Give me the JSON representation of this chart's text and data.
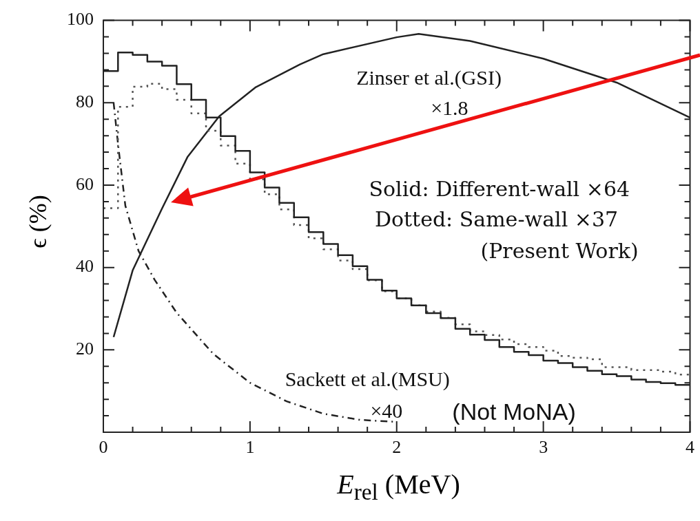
{
  "chart_data": {
    "type": "histogram",
    "xlabel": "E$_{rel}$ (MeV)",
    "ylabel": "ϵ (%)",
    "bins": [
      0,
      0.1,
      0.2,
      0.3,
      0.4,
      0.5,
      0.6,
      0.7,
      0.8,
      0.9,
      1,
      1.1,
      1.2,
      1.3,
      1.4,
      1.5,
      1.6,
      1.7,
      1.8,
      1.9,
      2,
      2.1,
      2.2,
      2.3,
      2.4,
      2.5,
      2.6,
      2.7,
      2.8,
      2.9,
      3,
      3.1,
      3.2,
      3.3,
      3.4,
      3.5,
      3.6,
      3.7,
      3.8,
      3.9,
      4
    ],
    "series": [
      {
        "color": "#222222",
        "line_style": "solid",
        "values": [
          87.7,
          92.2,
          91.6,
          90.0,
          89.0,
          84.5,
          80.7,
          76.4,
          71.9,
          68.3,
          63.1,
          59.4,
          55.7,
          52.2,
          48.6,
          45.7,
          43.0,
          40.3,
          37.0,
          34.4,
          32.5,
          30.8,
          28.9,
          27.7,
          25.1,
          23.7,
          22.4,
          20.7,
          19.5,
          18.7,
          17.4,
          16.8,
          15.8,
          14.9,
          14.1,
          13.6,
          12.8,
          12.2,
          11.9,
          11.5
        ]
      },
      {
        "color": "#555555",
        "line_style": "dotted",
        "values": [
          54.4,
          79.0,
          83.9,
          84.6,
          83.3,
          80.7,
          77.4,
          73.2,
          69.6,
          65.2,
          61.4,
          57.8,
          54.1,
          50.3,
          47.1,
          44.4,
          41.7,
          39.6,
          36.9,
          34.2,
          32.5,
          30.8,
          29.3,
          27.8,
          26.2,
          24.5,
          23.6,
          22.5,
          21.4,
          20.7,
          19.8,
          18.5,
          18.1,
          17.7,
          15.8,
          15.8,
          15.1,
          15.1,
          14.7,
          14.0
        ]
      },
      {
        "type": "line",
        "color": "#222222",
        "line_style": "solid",
        "x": [
          0.07,
          0.2,
          0.4,
          0.575,
          0.79,
          1.04,
          1.34,
          1.5,
          2.0,
          2.15,
          2.5,
          3.0,
          3.5,
          4.0
        ],
        "values": [
          23.1,
          39.3,
          54.3,
          66.9,
          76.7,
          83.8,
          89.3,
          91.8,
          95.9,
          96.7,
          95.0,
          90.7,
          84.9,
          76.4
        ]
      },
      {
        "type": "line",
        "color": "#222222",
        "line_style": "dashed",
        "x": [
          0.07,
          0.1,
          0.15,
          0.24,
          0.35,
          0.5,
          0.75,
          1.0,
          1.25,
          1.5,
          1.75,
          2.0
        ],
        "values": [
          80,
          70,
          55,
          44,
          37,
          29,
          19,
          12,
          7.5,
          4.5,
          3,
          2.5
        ]
      }
    ],
    "xlim": [
      0,
      4
    ],
    "ylim": [
      0,
      100
    ],
    "xticks": [
      0,
      {
        "value": 0.2,
        "label": null
      },
      {
        "value": 0.4,
        "label": null
      },
      {
        "value": 0.6,
        "label": null
      },
      {
        "value": 0.8,
        "label": null
      },
      1,
      {
        "value": 1.2,
        "label": null
      },
      {
        "value": 1.4,
        "label": null
      },
      {
        "value": 1.6,
        "label": null
      },
      {
        "value": 1.8,
        "label": null
      },
      2,
      {
        "value": 2.2,
        "label": null
      },
      {
        "value": 2.4,
        "label": null
      },
      {
        "value": 2.6,
        "label": null
      },
      {
        "value": 2.8,
        "label": null
      },
      3,
      {
        "value": 3.2,
        "label": null
      },
      {
        "value": 3.4,
        "label": null
      },
      {
        "value": 3.6,
        "label": null
      },
      {
        "value": 3.8,
        "label": null
      },
      4
    ],
    "yticks": [
      {
        "value": 4,
        "label": null
      },
      {
        "value": 8,
        "label": null
      },
      {
        "value": 12,
        "label": null
      },
      {
        "value": 16,
        "label": null
      },
      20,
      {
        "value": 24,
        "label": null
      },
      {
        "value": 28,
        "label": null
      },
      {
        "value": 32,
        "label": null
      },
      {
        "value": 36,
        "label": null
      },
      40,
      {
        "value": 44,
        "label": null
      },
      {
        "value": 48,
        "label": null
      },
      {
        "value": 52,
        "label": null
      },
      {
        "value": 56,
        "label": null
      },
      60,
      {
        "value": 64,
        "label": null
      },
      {
        "value": 68,
        "label": null
      },
      {
        "value": 72,
        "label": null
      },
      {
        "value": 76,
        "label": null
      },
      80,
      {
        "value": 84,
        "label": null
      },
      {
        "value": 88,
        "label": null
      },
      {
        "value": 92,
        "label": null
      },
      {
        "value": 96,
        "label": null
      },
      100
    ],
    "annotations": [
      "Zinser et al.(GSI)",
      "×1.8",
      "Solid: Different-wall ×64",
      "Dotted: Same-wall ×37",
      "(Present Work)",
      "Sackett et al.(MSU)",
      "×40",
      "(Not MoNA)"
    ],
    "grid": false,
    "legend": false
  }
}
